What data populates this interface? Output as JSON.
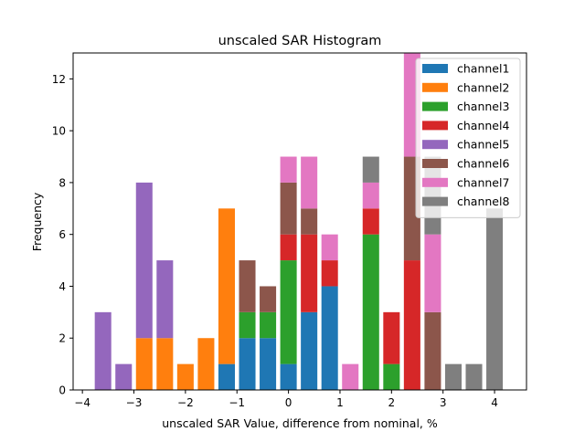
{
  "chart_data": {
    "type": "bar",
    "stacked": true,
    "title": "unscaled SAR Histogram",
    "xlabel": "unscaled SAR Value, difference from nominal, %",
    "ylabel": "Frequency",
    "xlim": [
      -4.18,
      4.62
    ],
    "ylim": [
      0,
      13
    ],
    "xticks": [
      -4,
      -3,
      -2,
      -1,
      0,
      1,
      2,
      3,
      4
    ],
    "xtick_labels": [
      "−4",
      "−3",
      "−2",
      "−1",
      "0",
      "1",
      "2",
      "3",
      "4"
    ],
    "yticks": [
      0,
      2,
      4,
      6,
      8,
      10,
      12
    ],
    "ytick_labels": [
      "0",
      "2",
      "4",
      "6",
      "8",
      "10",
      "12"
    ],
    "grid": false,
    "bin_width": 0.4,
    "bar_width_fraction": 0.8,
    "x": [
      -3.6,
      -3.2,
      -2.8,
      -2.4,
      -2.0,
      -1.6,
      -1.2,
      -0.8,
      -0.4,
      0.0,
      0.4,
      0.8,
      1.2,
      1.6,
      2.0,
      2.4,
      2.8,
      3.2,
      3.6,
      4.0
    ],
    "series": [
      {
        "name": "channel1",
        "color": "#1f77b4",
        "values": [
          0,
          0,
          0,
          0,
          0,
          0,
          1,
          2,
          2,
          1,
          3,
          4,
          0,
          0,
          0,
          0,
          0,
          0,
          0,
          0
        ]
      },
      {
        "name": "channel2",
        "color": "#ff7f0e",
        "values": [
          0,
          0,
          2,
          2,
          1,
          2,
          6,
          0,
          0,
          0,
          0,
          0,
          0,
          0,
          0,
          0,
          0,
          0,
          0,
          0
        ]
      },
      {
        "name": "channel3",
        "color": "#2ca02c",
        "values": [
          0,
          0,
          0,
          0,
          0,
          0,
          0,
          1,
          1,
          4,
          0,
          0,
          0,
          6,
          1,
          0,
          0,
          0,
          0,
          0
        ]
      },
      {
        "name": "channel4",
        "color": "#d62728",
        "values": [
          0,
          0,
          0,
          0,
          0,
          0,
          0,
          0,
          0,
          1,
          3,
          1,
          0,
          1,
          2,
          5,
          0,
          0,
          0,
          0
        ]
      },
      {
        "name": "channel5",
        "color": "#9467bd",
        "values": [
          3,
          1,
          6,
          3,
          0,
          0,
          0,
          0,
          0,
          0,
          0,
          0,
          0,
          0,
          0,
          0,
          0,
          0,
          0,
          0
        ]
      },
      {
        "name": "channel6",
        "color": "#8c564b",
        "values": [
          0,
          0,
          0,
          0,
          0,
          0,
          0,
          2,
          1,
          2,
          1,
          0,
          0,
          0,
          0,
          4,
          3,
          0,
          0,
          0
        ]
      },
      {
        "name": "channel7",
        "color": "#e377c2",
        "values": [
          0,
          0,
          0,
          0,
          0,
          0,
          0,
          0,
          0,
          1,
          2,
          1,
          1,
          1,
          0,
          4,
          3,
          0,
          0,
          0
        ]
      },
      {
        "name": "channel8",
        "color": "#7f7f7f",
        "values": [
          0,
          0,
          0,
          0,
          0,
          0,
          0,
          0,
          0,
          0,
          0,
          0,
          0,
          1,
          0,
          0,
          3,
          1,
          1,
          7
        ]
      }
    ],
    "legend": {
      "position": "top-right",
      "entries": [
        "channel1",
        "channel2",
        "channel3",
        "channel4",
        "channel5",
        "channel6",
        "channel7",
        "channel8"
      ]
    }
  }
}
